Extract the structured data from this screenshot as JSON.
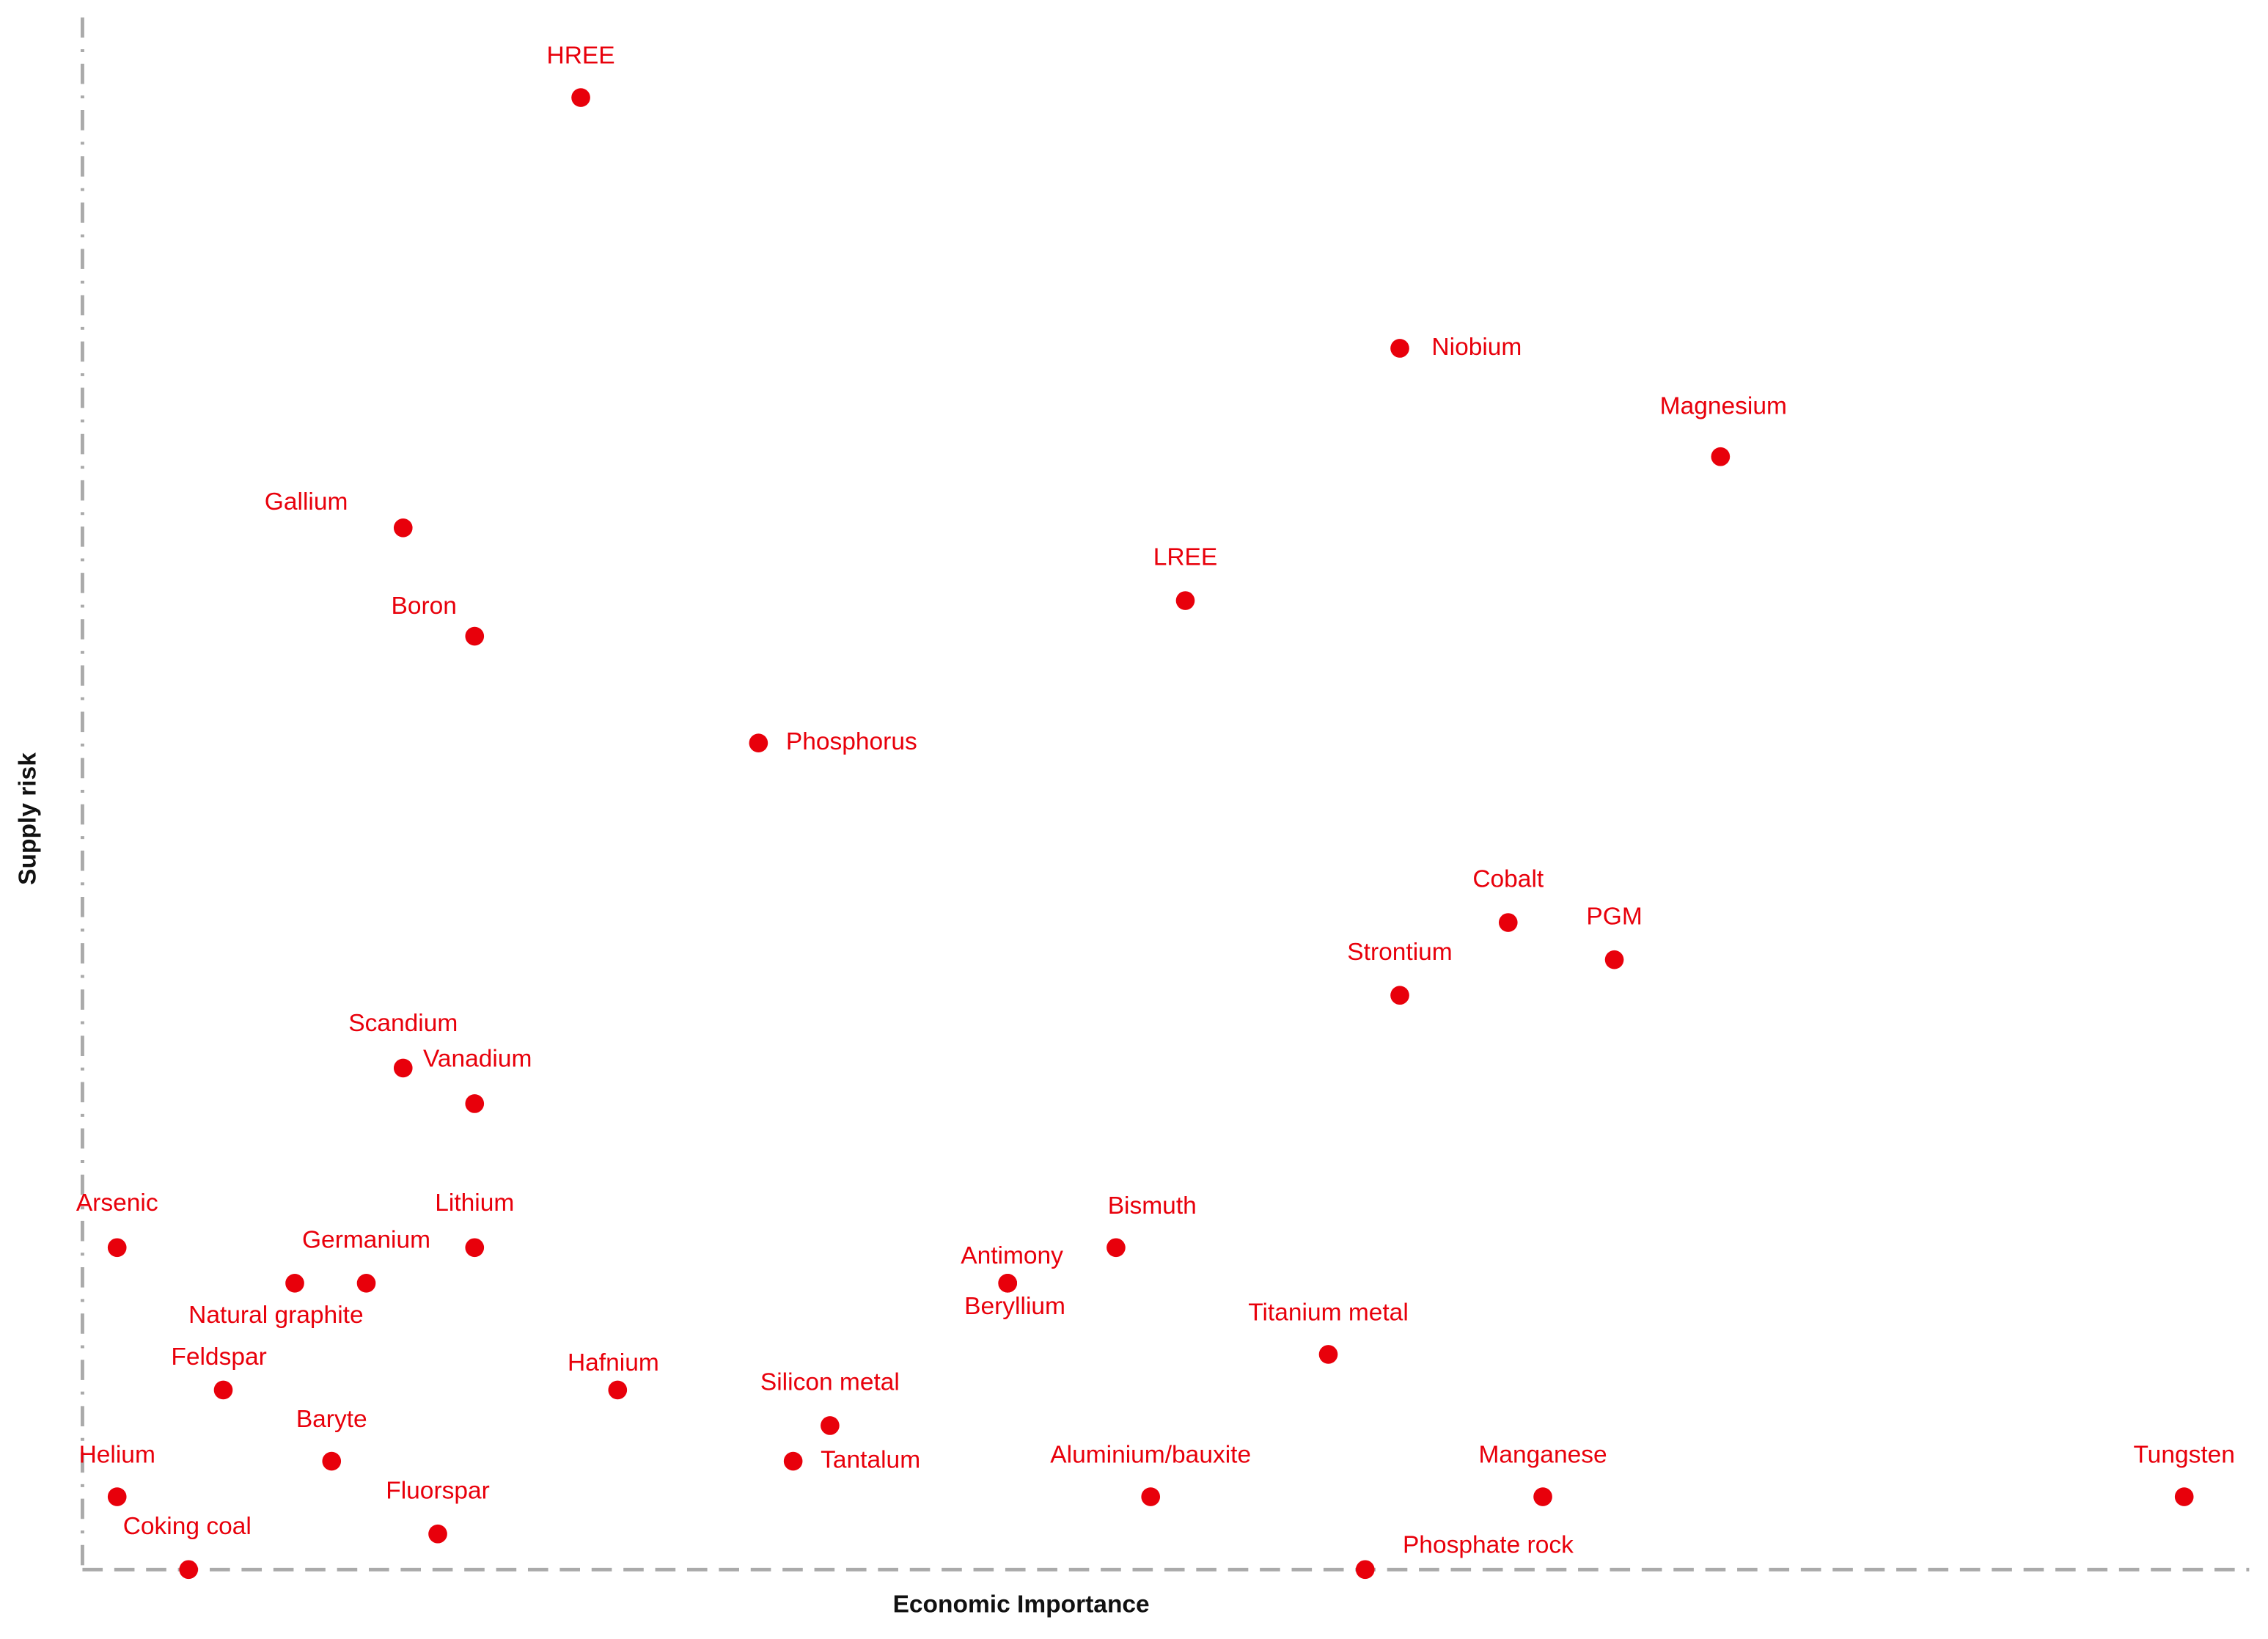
{
  "chart_data": {
    "type": "scatter",
    "xlabel": "Economic Importance",
    "ylabel": "Supply risk",
    "color": "#e8000b",
    "xlim": [
      0,
      100
    ],
    "ylim": [
      0,
      100
    ],
    "labels": [
      "HREE",
      "Niobium",
      "Magnesium",
      "Gallium",
      "LREE",
      "Boron",
      "Phosphorus",
      "Cobalt",
      "PGM",
      "Strontium",
      "Scandium",
      "Vanadium",
      "Arsenic",
      "Lithium",
      "Bismuth",
      "Germanium",
      "Natural graphite",
      "Antimony",
      "Beryllium",
      "Titanium metal",
      "Feldspar",
      "Hafnium",
      "Silicon metal",
      "Baryte",
      "Tantalum",
      "Helium",
      "Aluminium/bauxite",
      "Manganese",
      "Tungsten",
      "Fluorspar",
      "Coking coal",
      "Phosphate rock"
    ],
    "x": [
      23.0,
      60.8,
      75.6,
      14.8,
      50.9,
      18.1,
      31.2,
      65.8,
      70.7,
      60.8,
      14.8,
      18.1,
      1.6,
      18.1,
      47.7,
      13.1,
      9.8,
      42.7,
      42.7,
      57.5,
      6.5,
      24.7,
      34.5,
      11.5,
      32.8,
      1.6,
      49.3,
      67.4,
      97.0,
      16.4,
      4.9,
      59.2
    ],
    "y": [
      95.1,
      78.9,
      71.9,
      67.3,
      62.6,
      60.3,
      53.4,
      41.8,
      39.4,
      37.1,
      32.4,
      30.1,
      20.8,
      20.8,
      20.8,
      18.5,
      18.5,
      18.5,
      18.5,
      13.9,
      11.6,
      11.6,
      9.3,
      7.0,
      7.0,
      4.7,
      4.7,
      4.7,
      4.7,
      2.3,
      0,
      0
    ]
  }
}
